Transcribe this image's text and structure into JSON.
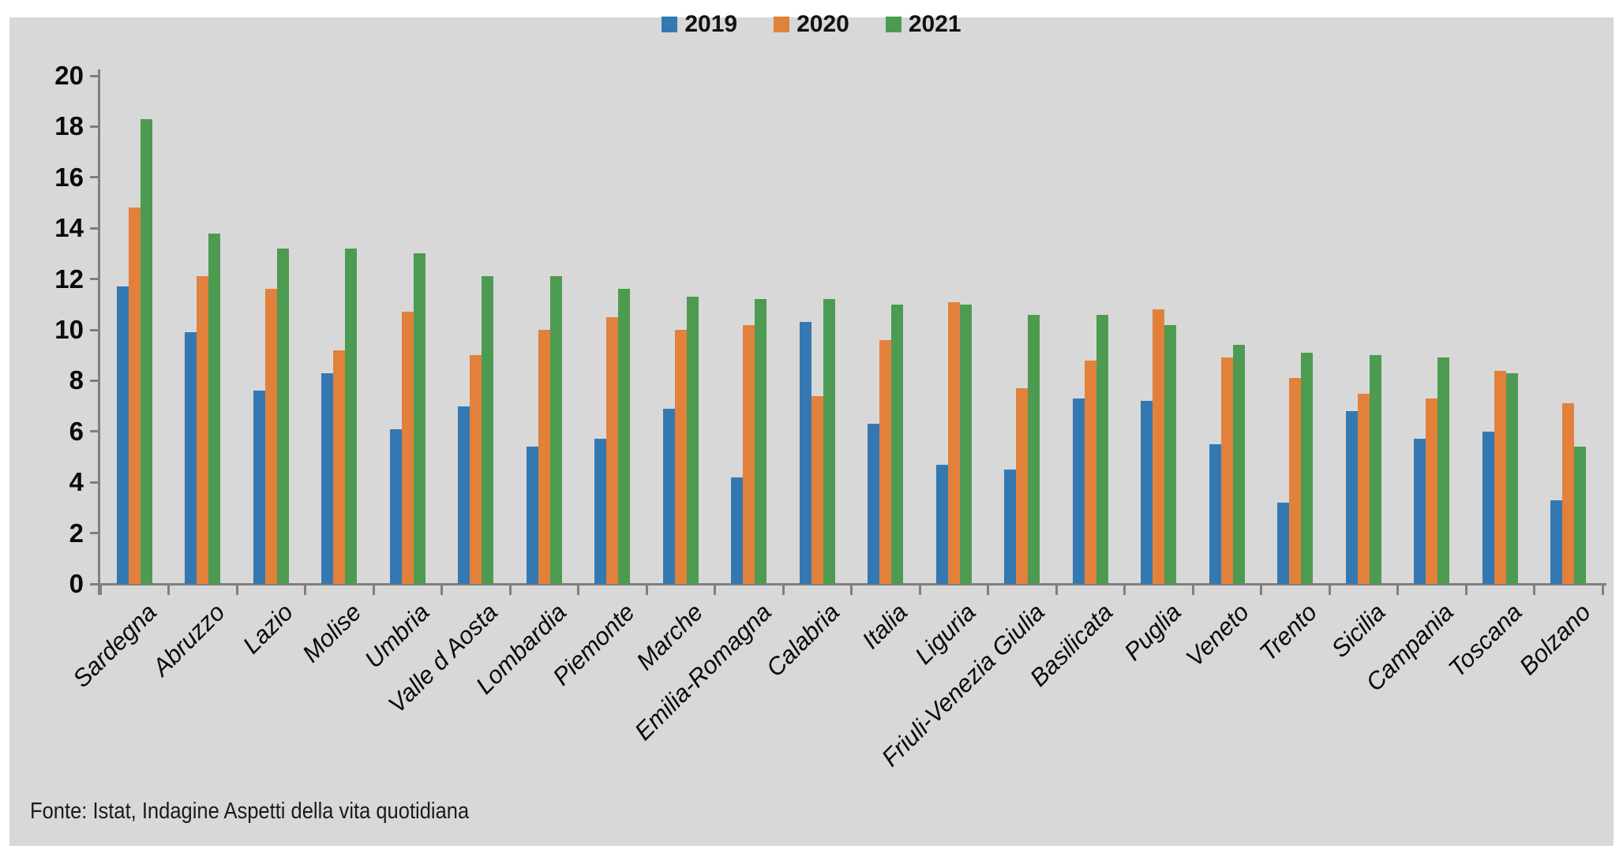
{
  "footer": {
    "source": "Fonte: Istat, Indagine Aspetti della vita quotidiana"
  },
  "style": {
    "panel_background": "#d8d8d8",
    "axis_color": "#7f7f7f",
    "series_colors": {
      "2019": "#3478b2",
      "2020": "#e2813c",
      "2021": "#4d9b51"
    }
  },
  "chart_data": {
    "type": "bar",
    "title": "",
    "xlabel": "",
    "ylabel": "",
    "ylim": [
      0,
      20
    ],
    "y_ticks": [
      0,
      2,
      4,
      6,
      8,
      10,
      12,
      14,
      16,
      18,
      20
    ],
    "grid": false,
    "legend_position": "top-center",
    "categories": [
      "Sardegna",
      "Abruzzo",
      "Lazio",
      "Molise",
      "Umbria",
      "Valle d Aosta",
      "Lombardia",
      "Piemonte",
      "Marche",
      "Emilia-Romagna",
      "Calabria",
      "Italia",
      "Liguria",
      "Friuli-Venezia Giulia",
      "Basilicata",
      "Puglia",
      "Veneto",
      "Trento",
      "Sicilia",
      "Campania",
      "Toscana",
      "Bolzano"
    ],
    "series": [
      {
        "name": "2019",
        "color": "#3478b2",
        "values": [
          11.7,
          9.9,
          7.6,
          8.3,
          6.1,
          7.0,
          5.4,
          5.7,
          6.9,
          4.2,
          10.3,
          6.3,
          4.7,
          4.5,
          7.3,
          7.2,
          5.5,
          3.2,
          6.8,
          5.7,
          6.0,
          3.3
        ]
      },
      {
        "name": "2020",
        "color": "#e2813c",
        "values": [
          14.8,
          12.1,
          11.6,
          9.2,
          10.7,
          9.0,
          10.0,
          10.5,
          10.0,
          10.2,
          7.4,
          9.6,
          11.1,
          7.7,
          8.8,
          10.8,
          8.9,
          8.1,
          7.5,
          7.3,
          8.4,
          7.1
        ]
      },
      {
        "name": "2021",
        "color": "#4d9b51",
        "values": [
          18.3,
          13.8,
          13.2,
          13.2,
          13.0,
          12.1,
          12.1,
          11.6,
          11.3,
          11.2,
          11.2,
          11.0,
          11.0,
          10.6,
          10.6,
          10.2,
          9.4,
          9.1,
          9.0,
          8.9,
          8.3,
          5.4
        ]
      }
    ]
  }
}
